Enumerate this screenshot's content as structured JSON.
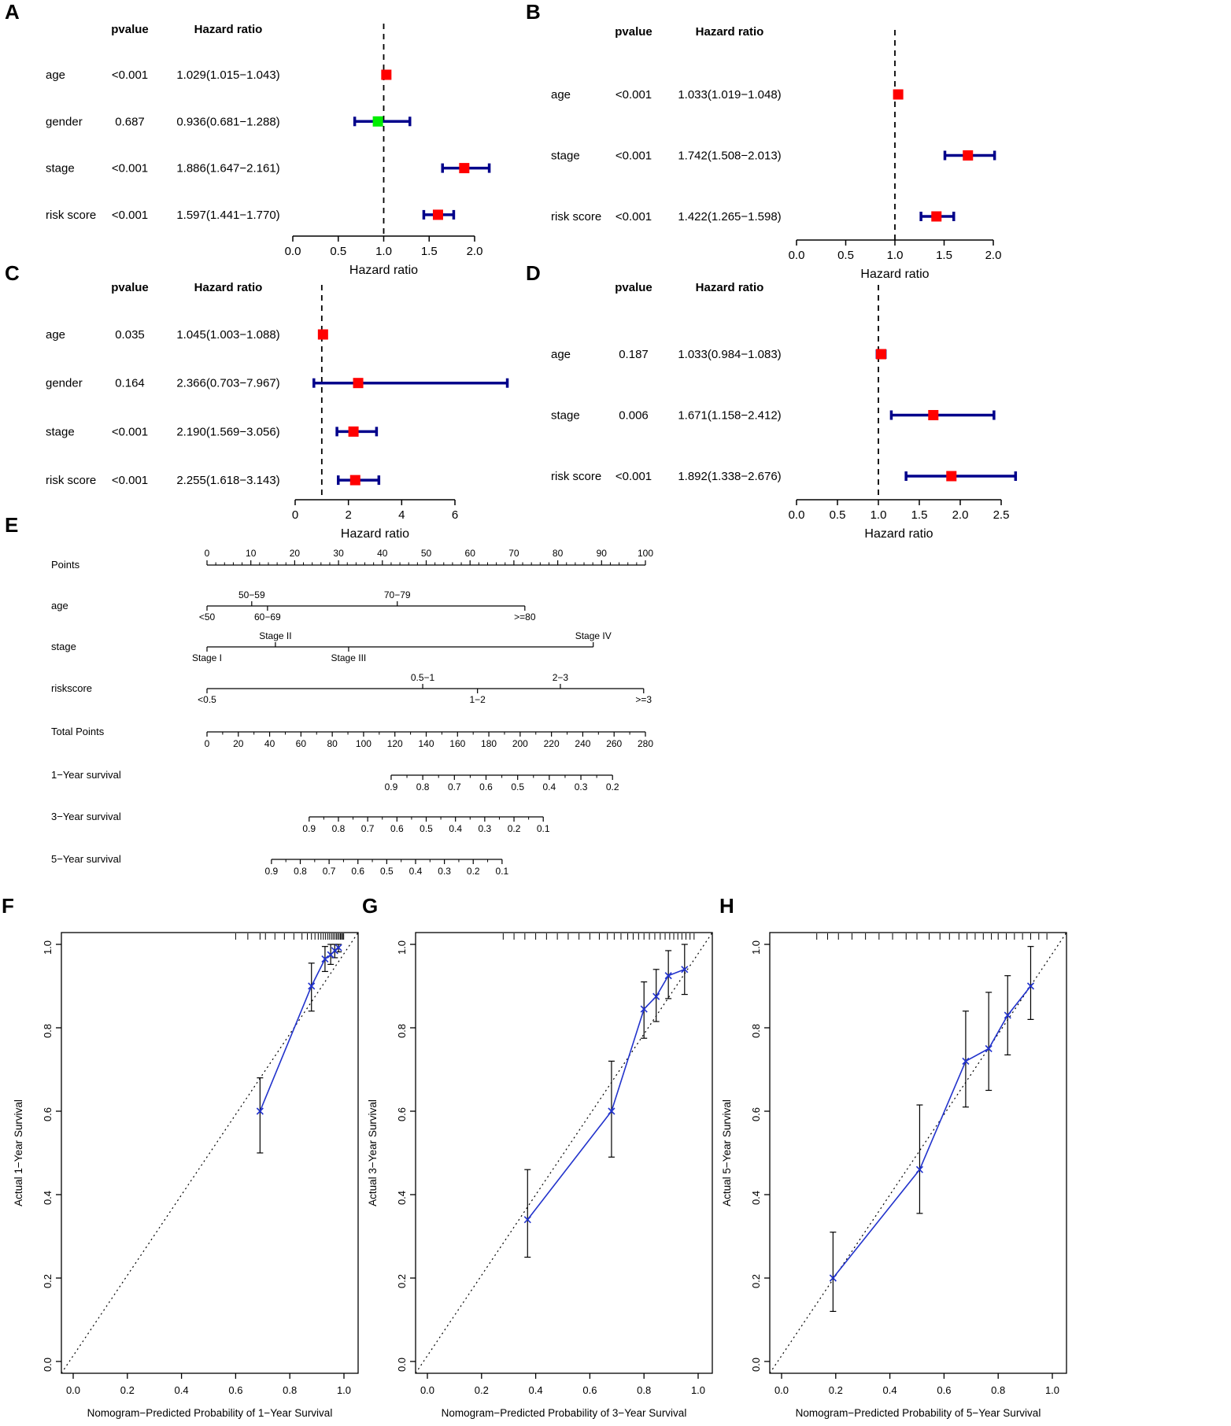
{
  "figure": {
    "background": "#ffffff"
  },
  "colors": {
    "ci_bar": "#00008B",
    "significant_marker": "#FF0000",
    "nonsignificant_marker": "#00EE00",
    "reference_line": "#000000",
    "calibration_line": "#2233CC",
    "error_bar": "#000000",
    "ideal_line": "#000000"
  },
  "chart_data": [
    {
      "panel": "A",
      "type": "forest",
      "columns": {
        "pvalue": "pvalue",
        "hr": "Hazard ratio"
      },
      "xlabel": "Hazard ratio",
      "xticks": [
        "0.0",
        "0.5",
        "1.0",
        "1.5",
        "2.0"
      ],
      "refline": 1,
      "rows": [
        {
          "label": "age",
          "pvalue": "<0.001",
          "hr_text": "1.029(1.015−1.043)",
          "est": 1.029,
          "lo": 1.015,
          "hi": 1.043,
          "color": "#FF0000"
        },
        {
          "label": "gender",
          "pvalue": "0.687",
          "hr_text": "0.936(0.681−1.288)",
          "est": 0.936,
          "lo": 0.681,
          "hi": 1.288,
          "color": "#00EE00"
        },
        {
          "label": "stage",
          "pvalue": "<0.001",
          "hr_text": "1.886(1.647−2.161)",
          "est": 1.886,
          "lo": 1.647,
          "hi": 2.161,
          "color": "#FF0000"
        },
        {
          "label": "risk score",
          "pvalue": "<0.001",
          "hr_text": "1.597(1.441−1.770)",
          "est": 1.597,
          "lo": 1.441,
          "hi": 1.77,
          "color": "#FF0000"
        }
      ]
    },
    {
      "panel": "B",
      "type": "forest",
      "columns": {
        "pvalue": "pvalue",
        "hr": "Hazard ratio"
      },
      "xlabel": "Hazard ratio",
      "xticks": [
        "0.0",
        "0.5",
        "1.0",
        "1.5",
        "2.0"
      ],
      "refline": 1,
      "rows": [
        {
          "label": "age",
          "pvalue": "<0.001",
          "hr_text": "1.033(1.019−1.048)",
          "est": 1.033,
          "lo": 1.019,
          "hi": 1.048,
          "color": "#FF0000"
        },
        {
          "label": "stage",
          "pvalue": "<0.001",
          "hr_text": "1.742(1.508−2.013)",
          "est": 1.742,
          "lo": 1.508,
          "hi": 2.013,
          "color": "#FF0000"
        },
        {
          "label": "risk score",
          "pvalue": "<0.001",
          "hr_text": "1.422(1.265−1.598)",
          "est": 1.422,
          "lo": 1.265,
          "hi": 1.598,
          "color": "#FF0000"
        }
      ]
    },
    {
      "panel": "C",
      "type": "forest",
      "columns": {
        "pvalue": "pvalue",
        "hr": "Hazard ratio"
      },
      "xlabel": "Hazard ratio",
      "xticks": [
        "0",
        "2",
        "4",
        "6"
      ],
      "refline": 1,
      "rows": [
        {
          "label": "age",
          "pvalue": "0.035",
          "hr_text": "1.045(1.003−1.088)",
          "est": 1.045,
          "lo": 1.003,
          "hi": 1.088,
          "color": "#FF0000"
        },
        {
          "label": "gender",
          "pvalue": "0.164",
          "hr_text": "2.366(0.703−7.967)",
          "est": 2.366,
          "lo": 0.703,
          "hi": 7.967,
          "color": "#FF0000"
        },
        {
          "label": "stage",
          "pvalue": "<0.001",
          "hr_text": "2.190(1.569−3.056)",
          "est": 2.19,
          "lo": 1.569,
          "hi": 3.056,
          "color": "#FF0000"
        },
        {
          "label": "risk score",
          "pvalue": "<0.001",
          "hr_text": "2.255(1.618−3.143)",
          "est": 2.255,
          "lo": 1.618,
          "hi": 3.143,
          "color": "#FF0000"
        }
      ]
    },
    {
      "panel": "D",
      "type": "forest",
      "columns": {
        "pvalue": "pvalue",
        "hr": "Hazard ratio"
      },
      "xlabel": "Hazard ratio",
      "xticks": [
        "0.0",
        "0.5",
        "1.0",
        "1.5",
        "2.0",
        "2.5"
      ],
      "refline": 1,
      "rows": [
        {
          "label": "age",
          "pvalue": "0.187",
          "hr_text": "1.033(0.984−1.083)",
          "est": 1.033,
          "lo": 0.984,
          "hi": 1.083,
          "color": "#FF0000"
        },
        {
          "label": "stage",
          "pvalue": "0.006",
          "hr_text": "1.671(1.158−2.412)",
          "est": 1.671,
          "lo": 1.158,
          "hi": 2.412,
          "color": "#FF0000"
        },
        {
          "label": "risk score",
          "pvalue": "<0.001",
          "hr_text": "1.892(1.338−2.676)",
          "est": 1.892,
          "lo": 1.338,
          "hi": 2.676,
          "color": "#FF0000"
        }
      ]
    },
    {
      "panel": "E",
      "type": "nomogram",
      "rows": [
        {
          "name": "points",
          "label": "Points",
          "kind": "scale",
          "side": "above",
          "start": 0,
          "end": 1,
          "minor": 4,
          "ticks": [
            "0",
            "10",
            "20",
            "30",
            "40",
            "50",
            "60",
            "70",
            "80",
            "90",
            "100"
          ]
        },
        {
          "name": "age",
          "label": "age",
          "kind": "categories",
          "line_start": 0,
          "line_end": 0.725,
          "items": [
            {
              "text": "<50",
              "pos": 0,
              "side": "below"
            },
            {
              "text": "50−59",
              "pos": 0.102,
              "side": "above"
            },
            {
              "text": "60−69",
              "pos": 0.138,
              "side": "below"
            },
            {
              "text": "70−79",
              "pos": 0.434,
              "side": "above"
            },
            {
              "text": ">=80",
              "pos": 0.725,
              "side": "below"
            }
          ]
        },
        {
          "name": "stage",
          "label": "stage",
          "kind": "categories",
          "line_start": 0,
          "line_end": 0.881,
          "items": [
            {
              "text": "Stage I",
              "pos": 0,
              "side": "below"
            },
            {
              "text": "Stage II",
              "pos": 0.156,
              "side": "above"
            },
            {
              "text": "Stage III",
              "pos": 0.323,
              "side": "below"
            },
            {
              "text": "Stage IV",
              "pos": 0.881,
              "side": "above"
            }
          ]
        },
        {
          "name": "riskscore",
          "label": "riskscore",
          "kind": "categories",
          "line_start": 0,
          "line_end": 0.996,
          "items": [
            {
              "text": "<0.5",
              "pos": 0,
              "side": "below"
            },
            {
              "text": "0.5−1",
              "pos": 0.492,
              "side": "above"
            },
            {
              "text": "1−2",
              "pos": 0.617,
              "side": "below"
            },
            {
              "text": "2−3",
              "pos": 0.806,
              "side": "above"
            },
            {
              "text": ">=3",
              "pos": 0.996,
              "side": "below"
            }
          ]
        },
        {
          "name": "total-points",
          "label": "Total Points",
          "kind": "scale",
          "side": "below",
          "start": 0,
          "end": 1,
          "minor": 1,
          "ticks": [
            "0",
            "20",
            "40",
            "60",
            "80",
            "100",
            "120",
            "140",
            "160",
            "180",
            "200",
            "220",
            "240",
            "260",
            "280"
          ]
        },
        {
          "name": "survival-1y",
          "label": "1−Year survival",
          "kind": "scale",
          "side": "below",
          "start": 0.42,
          "end": 0.925,
          "minor": 1,
          "ticks": [
            "0.9",
            "0.8",
            "0.7",
            "0.6",
            "0.5",
            "0.4",
            "0.3",
            "0.2"
          ]
        },
        {
          "name": "survival-3y",
          "label": "3−Year survival",
          "kind": "scale",
          "side": "below",
          "start": 0.233,
          "end": 0.767,
          "minor": 1,
          "ticks": [
            "0.9",
            "0.8",
            "0.7",
            "0.6",
            "0.5",
            "0.4",
            "0.3",
            "0.2",
            "0.1"
          ]
        },
        {
          "name": "survival-5y",
          "label": "5−Year survival",
          "kind": "scale",
          "side": "below",
          "start": 0.147,
          "end": 0.673,
          "minor": 1,
          "ticks": [
            "0.9",
            "0.8",
            "0.7",
            "0.6",
            "0.5",
            "0.4",
            "0.3",
            "0.2",
            "0.1"
          ]
        }
      ]
    },
    {
      "panel": "F",
      "type": "calibration",
      "xlabel": "Nomogram−Predicted Probability of 1−Year Survival",
      "ylabel": "Actual 1−Year Survival",
      "xticks": [
        "0.0",
        "0.2",
        "0.4",
        "0.6",
        "0.8",
        "1.0"
      ],
      "yticks": [
        "0.0",
        "0.2",
        "0.4",
        "0.6",
        "0.8",
        "1.0"
      ],
      "points": [
        {
          "x": 0.69,
          "y": 0.6,
          "lo": 0.5,
          "hi": 0.68
        },
        {
          "x": 0.88,
          "y": 0.9,
          "lo": 0.84,
          "hi": 0.955
        },
        {
          "x": 0.93,
          "y": 0.965,
          "lo": 0.935,
          "hi": 0.995
        },
        {
          "x": 0.951,
          "y": 0.975,
          "lo": 0.952,
          "hi": 1.0
        },
        {
          "x": 0.966,
          "y": 0.985,
          "lo": 0.968,
          "hi": 1.0
        },
        {
          "x": 0.98,
          "y": 0.992,
          "lo": 0.982,
          "hi": 1.0
        }
      ],
      "rug": [
        0.6,
        0.645,
        0.69,
        0.71,
        0.745,
        0.78,
        0.815,
        0.845,
        0.865,
        0.88,
        0.893,
        0.905,
        0.915,
        0.924,
        0.932,
        0.94,
        0.947,
        0.954,
        0.96,
        0.966,
        0.972,
        0.977,
        0.982,
        0.987,
        0.991,
        0.995,
        0.999
      ]
    },
    {
      "panel": "G",
      "type": "calibration",
      "xlabel": "Nomogram−Predicted Probability of 3−Year Survival",
      "ylabel": "Actual 3−Year Survival",
      "xticks": [
        "0.0",
        "0.2",
        "0.4",
        "0.6",
        "0.8",
        "1.0"
      ],
      "yticks": [
        "0.0",
        "0.2",
        "0.4",
        "0.6",
        "0.8",
        "1.0"
      ],
      "points": [
        {
          "x": 0.37,
          "y": 0.34,
          "lo": 0.25,
          "hi": 0.46
        },
        {
          "x": 0.68,
          "y": 0.6,
          "lo": 0.49,
          "hi": 0.72
        },
        {
          "x": 0.8,
          "y": 0.845,
          "lo": 0.775,
          "hi": 0.91
        },
        {
          "x": 0.845,
          "y": 0.875,
          "lo": 0.815,
          "hi": 0.94
        },
        {
          "x": 0.89,
          "y": 0.925,
          "lo": 0.87,
          "hi": 0.985
        },
        {
          "x": 0.95,
          "y": 0.94,
          "lo": 0.88,
          "hi": 1.0
        }
      ],
      "rug": [
        0.28,
        0.32,
        0.36,
        0.4,
        0.44,
        0.48,
        0.52,
        0.56,
        0.6,
        0.635,
        0.665,
        0.69,
        0.715,
        0.74,
        0.76,
        0.78,
        0.8,
        0.82,
        0.84,
        0.86,
        0.878,
        0.895,
        0.91,
        0.925,
        0.94,
        0.955,
        0.97,
        0.985
      ]
    },
    {
      "panel": "H",
      "type": "calibration",
      "xlabel": "Nomogram−Predicted Probability of 5−Year Survival",
      "ylabel": "Actual 5−Year Survival",
      "xticks": [
        "0.0",
        "0.2",
        "0.4",
        "0.6",
        "0.8",
        "1.0"
      ],
      "yticks": [
        "0.0",
        "0.2",
        "0.4",
        "0.6",
        "0.8",
        "1.0"
      ],
      "points": [
        {
          "x": 0.19,
          "y": 0.2,
          "lo": 0.12,
          "hi": 0.31
        },
        {
          "x": 0.51,
          "y": 0.46,
          "lo": 0.355,
          "hi": 0.615
        },
        {
          "x": 0.68,
          "y": 0.72,
          "lo": 0.61,
          "hi": 0.84
        },
        {
          "x": 0.765,
          "y": 0.75,
          "lo": 0.65,
          "hi": 0.885
        },
        {
          "x": 0.835,
          "y": 0.83,
          "lo": 0.735,
          "hi": 0.925
        },
        {
          "x": 0.92,
          "y": 0.9,
          "lo": 0.82,
          "hi": 0.995
        }
      ],
      "rug": [
        0.13,
        0.17,
        0.21,
        0.26,
        0.31,
        0.36,
        0.41,
        0.46,
        0.5,
        0.545,
        0.585,
        0.62,
        0.655,
        0.685,
        0.715,
        0.745,
        0.775,
        0.8,
        0.83,
        0.86,
        0.89,
        0.92,
        0.95,
        0.98
      ]
    }
  ]
}
